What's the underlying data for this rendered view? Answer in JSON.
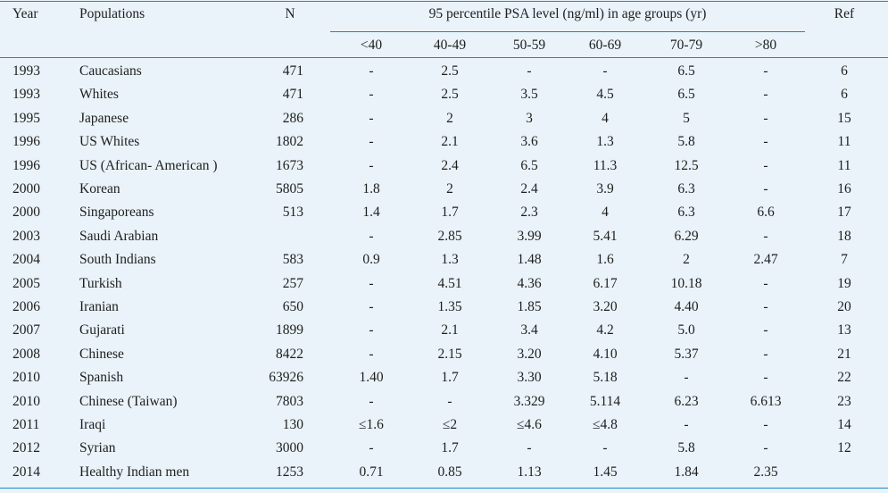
{
  "header": {
    "year": "Year",
    "populations": "Populations",
    "n": "N",
    "group_title": "95 percentile PSA level (ng/ml) in age groups (yr)",
    "ref": "Ref",
    "age_groups": [
      "<40",
      "40-49",
      "50-59",
      "60-69",
      "70-79",
      ">80"
    ]
  },
  "rows": [
    {
      "year": "1993",
      "population": "Caucasians",
      "n": "471",
      "values": [
        "-",
        "2.5",
        "-",
        "-",
        "6.5",
        "-"
      ],
      "ref": "6"
    },
    {
      "year": "1993",
      "population": "Whites",
      "n": "471",
      "values": [
        "-",
        "2.5",
        "3.5",
        "4.5",
        "6.5",
        "-"
      ],
      "ref": "6"
    },
    {
      "year": "1995",
      "population": "Japanese",
      "n": "286",
      "values": [
        "-",
        "2",
        "3",
        "4",
        "5",
        "-"
      ],
      "ref": "15"
    },
    {
      "year": "1996",
      "population": "US Whites",
      "n": "1802",
      "values": [
        "-",
        "2.1",
        "3.6",
        "1.3",
        "5.8",
        "-"
      ],
      "ref": "11"
    },
    {
      "year": "1996",
      "population": "US (African- American )",
      "n": "1673",
      "values": [
        "-",
        "2.4",
        "6.5",
        "11.3",
        "12.5",
        "-"
      ],
      "ref": "11"
    },
    {
      "year": "2000",
      "population": "Korean",
      "n": "5805",
      "values": [
        "1.8",
        "2",
        "2.4",
        "3.9",
        "6.3",
        "-"
      ],
      "ref": "16"
    },
    {
      "year": "2000",
      "population": "Singaporeans",
      "n": "513",
      "values": [
        "1.4",
        "1.7",
        "2.3",
        "4",
        "6.3",
        "6.6"
      ],
      "ref": "17"
    },
    {
      "year": "2003",
      "population": "Saudi Arabian",
      "n": "",
      "values": [
        "-",
        "2.85",
        "3.99",
        "5.41",
        "6.29",
        "-"
      ],
      "ref": "18"
    },
    {
      "year": "2004",
      "population": "South Indians",
      "n": "583",
      "values": [
        "0.9",
        "1.3",
        "1.48",
        "1.6",
        "2",
        "2.47"
      ],
      "ref": "7"
    },
    {
      "year": "2005",
      "population": "Turkish",
      "n": "257",
      "values": [
        "-",
        "4.51",
        "4.36",
        "6.17",
        "10.18",
        "-"
      ],
      "ref": "19"
    },
    {
      "year": "2006",
      "population": "Iranian",
      "n": "650",
      "values": [
        "-",
        "1.35",
        "1.85",
        "3.20",
        "4.40",
        "-"
      ],
      "ref": "20"
    },
    {
      "year": "2007",
      "population": "Gujarati",
      "n": "1899",
      "values": [
        "-",
        "2.1",
        "3.4",
        "4.2",
        "5.0",
        "-"
      ],
      "ref": "13"
    },
    {
      "year": "2008",
      "population": "Chinese",
      "n": "8422",
      "values": [
        "-",
        "2.15",
        "3.20",
        "4.10",
        "5.37",
        "-"
      ],
      "ref": "21"
    },
    {
      "year": "2010",
      "population": "Spanish",
      "n": "63926",
      "values": [
        "1.40",
        "1.7",
        "3.30",
        "5.18",
        "-",
        "-"
      ],
      "ref": "22"
    },
    {
      "year": "2010",
      "population": "Chinese (Taiwan)",
      "n": "7803",
      "values": [
        "-",
        "-",
        "3.329",
        "5.114",
        "6.23",
        "6.613"
      ],
      "ref": "23"
    },
    {
      "year": "2011",
      "population": "Iraqi",
      "n": "130",
      "values": [
        "≤1.6",
        "≤2",
        "≤4.6",
        "≤4.8",
        "-",
        "-"
      ],
      "ref": "14"
    },
    {
      "year": "2012",
      "population": "Syrian",
      "n": "3000",
      "values": [
        "-",
        "1.7",
        "-",
        "-",
        "5.8",
        "-"
      ],
      "ref": "12"
    },
    {
      "year": "2014",
      "population": "Healthy Indian men",
      "n": "1253",
      "values": [
        "0.71",
        "0.85",
        "1.13",
        "1.45",
        "1.84",
        "2.35"
      ],
      "ref": ""
    }
  ],
  "colors": {
    "background": "#e9f3f9",
    "rule": "#1a88c9",
    "text": "#1e1e1e"
  }
}
